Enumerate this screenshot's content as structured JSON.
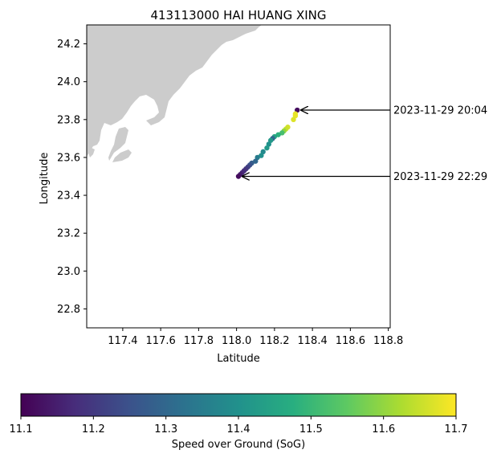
{
  "chart_data": {
    "type": "scatter",
    "title": "413113000 HAI HUANG XING",
    "xlabel": "Latitude",
    "ylabel": "Longitude",
    "xlim": [
      117.21,
      118.81
    ],
    "ylim": [
      22.7,
      24.3
    ],
    "x_ticks": [
      117.4,
      117.6,
      117.8,
      118.0,
      118.2,
      118.4,
      118.6,
      118.8
    ],
    "x_tick_labels": [
      "117.4",
      "117.6",
      "117.8",
      "118.0",
      "118.2",
      "118.4",
      "118.6",
      "118.8"
    ],
    "y_ticks": [
      22.8,
      23.0,
      23.2,
      23.4,
      23.6,
      23.8,
      24.0,
      24.2
    ],
    "y_tick_labels": [
      "22.8",
      "23.0",
      "23.2",
      "23.4",
      "23.6",
      "23.8",
      "24.0",
      "24.2"
    ],
    "grid": false,
    "land_color": "#cccccc",
    "sea_color": "#ffffff",
    "colormap": "viridis",
    "points": [
      {
        "x": 118.32,
        "y": 23.85,
        "sog": 11.12
      },
      {
        "x": 118.31,
        "y": 23.83,
        "sog": 11.68
      },
      {
        "x": 118.31,
        "y": 23.82,
        "sog": 11.68
      },
      {
        "x": 118.3,
        "y": 23.8,
        "sog": 11.67
      },
      {
        "x": 118.27,
        "y": 23.76,
        "sog": 11.66
      },
      {
        "x": 118.26,
        "y": 23.75,
        "sog": 11.65
      },
      {
        "x": 118.25,
        "y": 23.74,
        "sog": 11.6
      },
      {
        "x": 118.24,
        "y": 23.73,
        "sog": 11.52
      },
      {
        "x": 118.22,
        "y": 23.72,
        "sog": 11.48
      },
      {
        "x": 118.2,
        "y": 23.71,
        "sog": 11.45
      },
      {
        "x": 118.19,
        "y": 23.7,
        "sog": 11.3
      },
      {
        "x": 118.18,
        "y": 23.69,
        "sog": 11.42
      },
      {
        "x": 118.17,
        "y": 23.67,
        "sog": 11.4
      },
      {
        "x": 118.16,
        "y": 23.65,
        "sog": 11.42
      },
      {
        "x": 118.14,
        "y": 23.63,
        "sog": 11.38
      },
      {
        "x": 118.13,
        "y": 23.61,
        "sog": 11.4
      },
      {
        "x": 118.11,
        "y": 23.6,
        "sog": 11.35
      },
      {
        "x": 118.1,
        "y": 23.58,
        "sog": 11.3
      },
      {
        "x": 118.08,
        "y": 23.57,
        "sog": 11.28
      },
      {
        "x": 118.07,
        "y": 23.56,
        "sog": 11.25
      },
      {
        "x": 118.06,
        "y": 23.55,
        "sog": 11.22
      },
      {
        "x": 118.05,
        "y": 23.54,
        "sog": 11.2
      },
      {
        "x": 118.04,
        "y": 23.53,
        "sog": 11.18
      },
      {
        "x": 118.03,
        "y": 23.52,
        "sog": 11.17
      },
      {
        "x": 118.02,
        "y": 23.51,
        "sog": 11.15
      },
      {
        "x": 118.01,
        "y": 23.5,
        "sog": 11.12
      }
    ],
    "annotations": [
      {
        "text": "2023-11-29 20:04",
        "x": 118.32,
        "y": 23.85
      },
      {
        "text": "2023-11-29 22:29",
        "x": 118.01,
        "y": 23.5
      }
    ],
    "colorbar": {
      "label": "Speed over Ground (SoG)",
      "min": 11.1,
      "max": 11.7,
      "ticks": [
        11.1,
        11.2,
        11.3,
        11.4,
        11.5,
        11.6,
        11.7
      ],
      "tick_labels": [
        "11.1",
        "11.2",
        "11.3",
        "11.4",
        "11.5",
        "11.6",
        "11.7"
      ],
      "orientation": "horizontal",
      "placement": "bottom"
    }
  }
}
